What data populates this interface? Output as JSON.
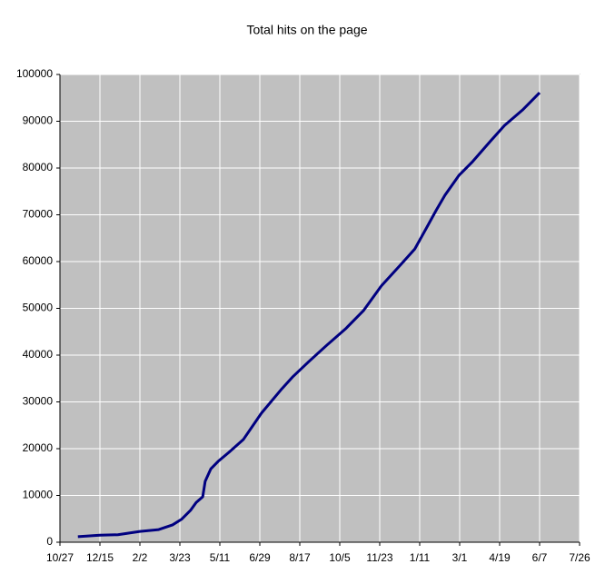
{
  "chart_data": {
    "type": "line",
    "title": "Total hits on the page",
    "x": [
      22,
      49,
      71,
      98,
      121,
      138,
      149,
      160,
      167,
      175,
      178,
      185,
      194,
      207,
      225,
      247,
      272,
      285,
      305,
      327,
      350,
      372,
      394,
      417,
      435,
      450,
      461,
      472,
      489,
      506,
      528,
      545,
      567,
      588
    ],
    "values": [
      1200,
      1500,
      1600,
      2300,
      2700,
      3700,
      4900,
      6800,
      8500,
      9700,
      13000,
      15700,
      17300,
      19200,
      22000,
      27600,
      32800,
      35300,
      38600,
      42100,
      45600,
      49500,
      54800,
      59200,
      62700,
      67400,
      70900,
      74200,
      78400,
      81400,
      85800,
      89100,
      92400,
      96100
    ],
    "color": "#000080",
    "xlim": [
      0,
      637
    ],
    "xticks": [
      {
        "value": 0,
        "label": "10/27"
      },
      {
        "value": 49,
        "label": "12/15"
      },
      {
        "value": 98,
        "label": "2/2"
      },
      {
        "value": 147,
        "label": "3/23"
      },
      {
        "value": 196,
        "label": "5/11"
      },
      {
        "value": 245,
        "label": "6/29"
      },
      {
        "value": 294,
        "label": "8/17"
      },
      {
        "value": 343,
        "label": "10/5"
      },
      {
        "value": 392,
        "label": "11/23"
      },
      {
        "value": 441,
        "label": "1/11"
      },
      {
        "value": 490,
        "label": "3/1"
      },
      {
        "value": 539,
        "label": "4/19"
      },
      {
        "value": 588,
        "label": "6/7"
      },
      {
        "value": 637,
        "label": "7/26"
      }
    ],
    "ylim": [
      0,
      100000
    ],
    "yticks": [
      0,
      10000,
      20000,
      30000,
      40000,
      50000,
      60000,
      70000,
      80000,
      90000,
      100000
    ],
    "grid": true
  }
}
